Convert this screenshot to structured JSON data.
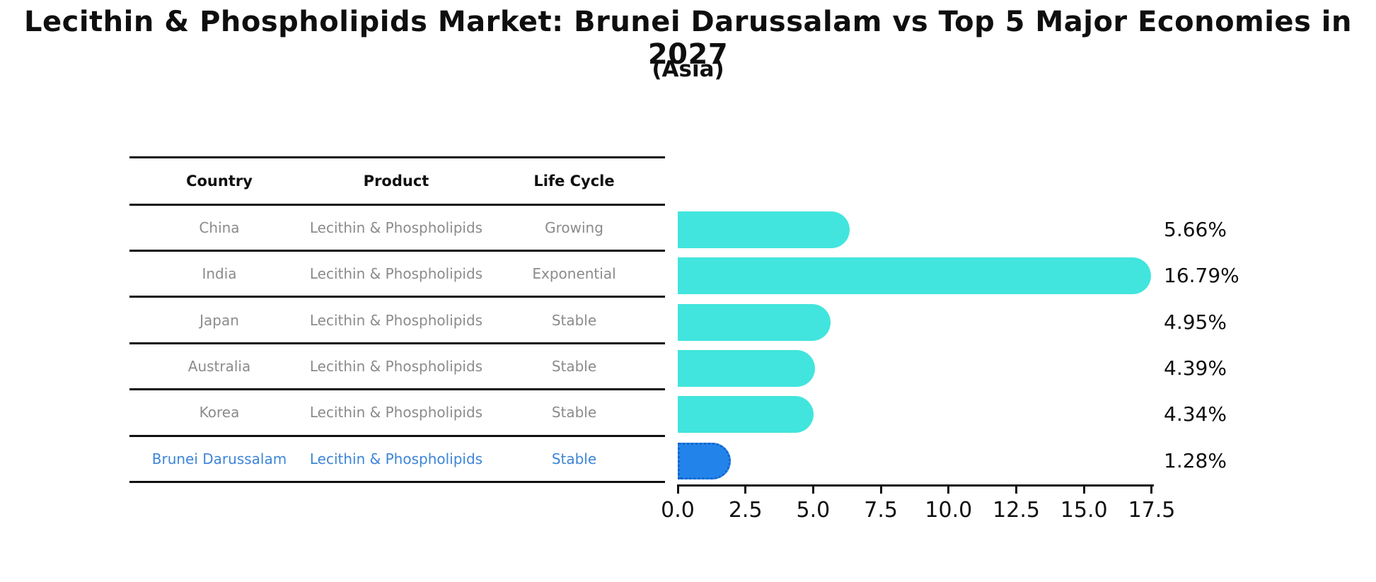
{
  "chart_data": {
    "type": "bar",
    "orientation": "horizontal",
    "title": "Lecithin & Phospholipids Market: Brunei Darussalam vs Top 5 Major Economies in 2027",
    "subtitle": "(Asia)",
    "categories": [
      "China",
      "India",
      "Japan",
      "Australia",
      "Korea",
      "Brunei Darussalam"
    ],
    "values": [
      5.66,
      16.79,
      4.95,
      4.39,
      4.34,
      1.28
    ],
    "value_labels": [
      "5.66%",
      "16.79%",
      "4.95%",
      "4.39%",
      "4.34%",
      "1.28%"
    ],
    "xlim": [
      0,
      17.5
    ],
    "x_ticks": [
      "0.0",
      "2.5",
      "5.0",
      "7.5",
      "10.0",
      "12.5",
      "15.0",
      "17.5"
    ],
    "legend": "none",
    "grid": "off",
    "bar_color": "#41e5dd",
    "highlight_color": "#2284ea",
    "highlight_index": 5
  },
  "table": {
    "headers": [
      "Country",
      "Product",
      "Life Cycle"
    ],
    "rows": [
      {
        "country": "China",
        "product": "Lecithin & Phospholipids",
        "life_cycle": "Growing",
        "highlight": false
      },
      {
        "country": "India",
        "product": "Lecithin & Phospholipids",
        "life_cycle": "Exponential",
        "highlight": false
      },
      {
        "country": "Japan",
        "product": "Lecithin & Phospholipids",
        "life_cycle": "Stable",
        "highlight": false
      },
      {
        "country": "Australia",
        "product": "Lecithin & Phospholipids",
        "life_cycle": "Stable",
        "highlight": false
      },
      {
        "country": "Korea",
        "product": "Lecithin & Phospholipids",
        "life_cycle": "Stable",
        "highlight": false
      },
      {
        "country": "Brunei Darussalam",
        "product": "Lecithin & Phospholipids",
        "life_cycle": "Stable",
        "highlight": true
      }
    ]
  }
}
